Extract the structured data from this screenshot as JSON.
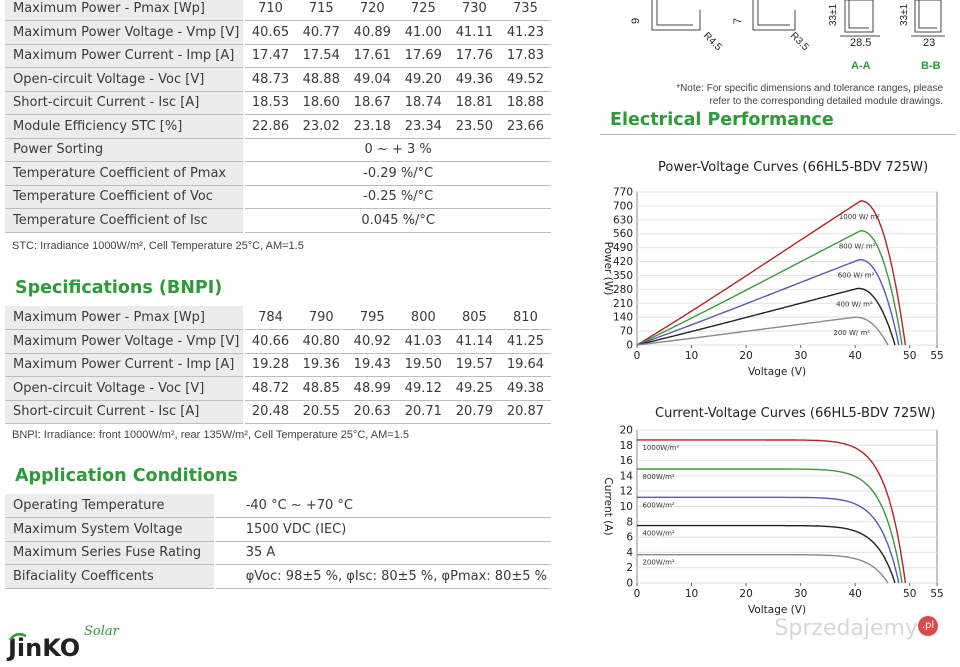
{
  "stc_table": {
    "rows": [
      {
        "label": "Maximum Power - Pmax [Wp]",
        "values": [
          "710",
          "715",
          "720",
          "725",
          "730",
          "735"
        ]
      },
      {
        "label": "Maximum Power Voltage - Vmp [V]",
        "values": [
          "40.65",
          "40.77",
          "40.89",
          "41.00",
          "41.11",
          "41.23"
        ]
      },
      {
        "label": "Maximum Power Current - Imp [A]",
        "values": [
          "17.47",
          "17.54",
          "17.61",
          "17.69",
          "17.76",
          "17.83"
        ]
      },
      {
        "label": "Open-circuit Voltage - Voc [V]",
        "values": [
          "48.73",
          "48.88",
          "49.04",
          "49.20",
          "49.36",
          "49.52"
        ]
      },
      {
        "label": "Short-circuit Current - Isc [A]",
        "values": [
          "18.53",
          "18.60",
          "18.67",
          "18.74",
          "18.81",
          "18.88"
        ]
      },
      {
        "label": "Module Efficiency STC [%]",
        "values": [
          "22.86",
          "23.02",
          "23.18",
          "23.34",
          "23.50",
          "23.66"
        ]
      },
      {
        "label": "Power Sorting",
        "span": "0 ~ + 3 %"
      },
      {
        "label": "Temperature Coefficient of Pmax",
        "span": "-0.29 %/°C"
      },
      {
        "label": "Temperature Coefficient of Voc",
        "span": "-0.25 %/°C"
      },
      {
        "label": "Temperature Coefficient of Isc",
        "span": "0.045 %/°C"
      }
    ],
    "note": "STC: Irradiance 1000W/m², Cell Temperature 25°C, AM=1.5"
  },
  "bnpi": {
    "title": "Specifications (BNPI)",
    "rows": [
      {
        "label": "Maximum Power - Pmax [Wp]",
        "values": [
          "784",
          "790",
          "795",
          "800",
          "805",
          "810"
        ]
      },
      {
        "label": "Maximum Power Voltage - Vmp [V]",
        "values": [
          "40.66",
          "40.80",
          "40.92",
          "41.03",
          "41.14",
          "41.25"
        ]
      },
      {
        "label": "Maximum Power Current - Imp [A]",
        "values": [
          "19.28",
          "19.36",
          "19.43",
          "19.50",
          "19.57",
          "19.64"
        ]
      },
      {
        "label": "Open-circuit Voltage - Voc [V]",
        "values": [
          "48.72",
          "48.85",
          "48.99",
          "49.12",
          "49.25",
          "49.38"
        ]
      },
      {
        "label": "Short-circuit Current - Isc [A]",
        "values": [
          "20.48",
          "20.55",
          "20.63",
          "20.71",
          "20.79",
          "20.87"
        ]
      }
    ],
    "note": "BNPI: Irradiance: front 1000W/m², rear 135W/m², Cell Temperature 25°C, AM=1.5"
  },
  "application": {
    "title": "Application Conditions",
    "rows": [
      {
        "label": "Operating Temperature",
        "value": "-40 °C ~ +70 °C"
      },
      {
        "label": "Maximum System Voltage",
        "value": "1500 VDC (IEC)"
      },
      {
        "label": "Maximum Series Fuse Rating",
        "value": "35 A"
      },
      {
        "label": "Bifaciality Coefficents",
        "value": "φVoc: 98±5 %, φIsc: 80±5 %, φPmax: 80±5 %"
      }
    ]
  },
  "drawing": {
    "dims": [
      "9",
      "R4.5",
      "7",
      "R3.5",
      "33±1",
      "28.5",
      "33±1",
      "23"
    ],
    "sections": [
      "A-A",
      "B-B"
    ],
    "note_line1": "*Note: For specific dimensions and tolerance ranges, please",
    "note_line2": "refer to the corresponding detailed module drawings."
  },
  "electrical": {
    "title": "Electrical Performance"
  },
  "brand": {
    "name": "JinKO",
    "tagline": "Solar",
    "colors": {
      "green": "#2e9a38",
      "dark": "#222222"
    }
  },
  "watermark": {
    "text": "Sprzedajemy",
    "badge": ".pl"
  },
  "chart_data": [
    {
      "type": "line",
      "title": "Power-Voltage Curves (66HL5-BDV 725W)",
      "xlabel": "Voltage (V)",
      "ylabel": "Power (W)",
      "xlim": [
        0,
        55
      ],
      "ylim": [
        0,
        770
      ],
      "x_ticks": [
        "0",
        "10",
        "20",
        "30",
        "40",
        "50",
        "55"
      ],
      "y_ticks": [
        "0",
        "70",
        "140",
        "210",
        "280",
        "350",
        "420",
        "490",
        "560",
        "630",
        "700",
        "770"
      ],
      "series": [
        {
          "name": "1000 W/ m²",
          "color": "#b0252a",
          "pmax": 725,
          "vmp": 41,
          "voc": 49.2
        },
        {
          "name": "800 W/ m²",
          "color": "#3c9a3c",
          "pmax": 575,
          "vmp": 41,
          "voc": 48.6
        },
        {
          "name": "600 W/ m²",
          "color": "#5a58b8",
          "pmax": 430,
          "vmp": 40.8,
          "voc": 48.0
        },
        {
          "name": "400 W/ m²",
          "color": "#222222",
          "pmax": 285,
          "vmp": 40.5,
          "voc": 47.3
        },
        {
          "name": "200 W/ m²",
          "color": "#8a8a8a",
          "pmax": 140,
          "vmp": 40,
          "voc": 46.0
        }
      ]
    },
    {
      "type": "line",
      "title": "Current-Voltage Curves (66HL5-BDV 725W)",
      "xlabel": "Voltage (V)",
      "ylabel": "Current (A)",
      "xlim": [
        0,
        55
      ],
      "ylim": [
        0,
        20
      ],
      "x_ticks": [
        "0",
        "10",
        "20",
        "30",
        "40",
        "50",
        "55"
      ],
      "y_ticks": [
        "0",
        "2",
        "4",
        "6",
        "8",
        "10",
        "12",
        "14",
        "16",
        "18",
        "20"
      ],
      "series": [
        {
          "name": "1000W/m²",
          "color": "#b0252a",
          "isc": 18.7,
          "voc": 49.2
        },
        {
          "name": "800W/m²",
          "color": "#3c9a3c",
          "isc": 14.9,
          "voc": 48.6
        },
        {
          "name": "600W/m²",
          "color": "#5a58b8",
          "isc": 11.2,
          "voc": 48.0
        },
        {
          "name": "400W/m²",
          "color": "#222222",
          "isc": 7.5,
          "voc": 47.3
        },
        {
          "name": "200W/m²",
          "color": "#8a8a8a",
          "isc": 3.7,
          "voc": 46.0
        }
      ]
    }
  ]
}
